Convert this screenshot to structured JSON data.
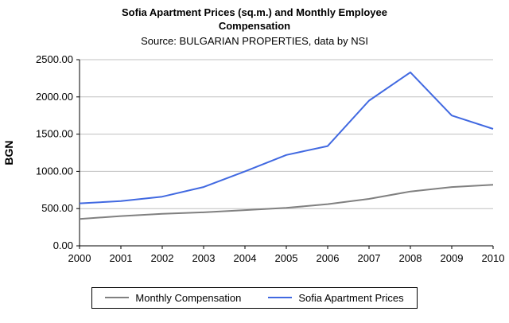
{
  "header": {
    "title": "Sofia Apartment Prices (sq.m.) and Monthly Employee Compensation",
    "subtitle": "Source: BULGARIAN PROPERTIES, data by NSI"
  },
  "chart_data": {
    "type": "line",
    "x": [
      2000,
      2001,
      2002,
      2003,
      2004,
      2005,
      2006,
      2007,
      2008,
      2009,
      2010
    ],
    "series": [
      {
        "name": "Monthly Compensation",
        "color": "#808080",
        "values": [
          360,
          400,
          430,
          450,
          480,
          510,
          560,
          630,
          730,
          790,
          820
        ]
      },
      {
        "name": "Sofia Apartment Prices",
        "color": "#4169e1",
        "values": [
          570,
          600,
          660,
          790,
          1000,
          1220,
          1340,
          1950,
          2330,
          1750,
          1570
        ]
      }
    ],
    "ylabel": "BGN",
    "ylim": [
      0,
      2500
    ],
    "yticks": [
      0,
      500,
      1000,
      1500,
      2000,
      2500
    ],
    "ytick_labels": [
      "0.00",
      "500.00",
      "1000.00",
      "1500.00",
      "2000.00",
      "2500.00"
    ],
    "grid": true,
    "grid_color": "#c0c0c0",
    "axis_color": "#000000",
    "legend_position": "bottom"
  }
}
